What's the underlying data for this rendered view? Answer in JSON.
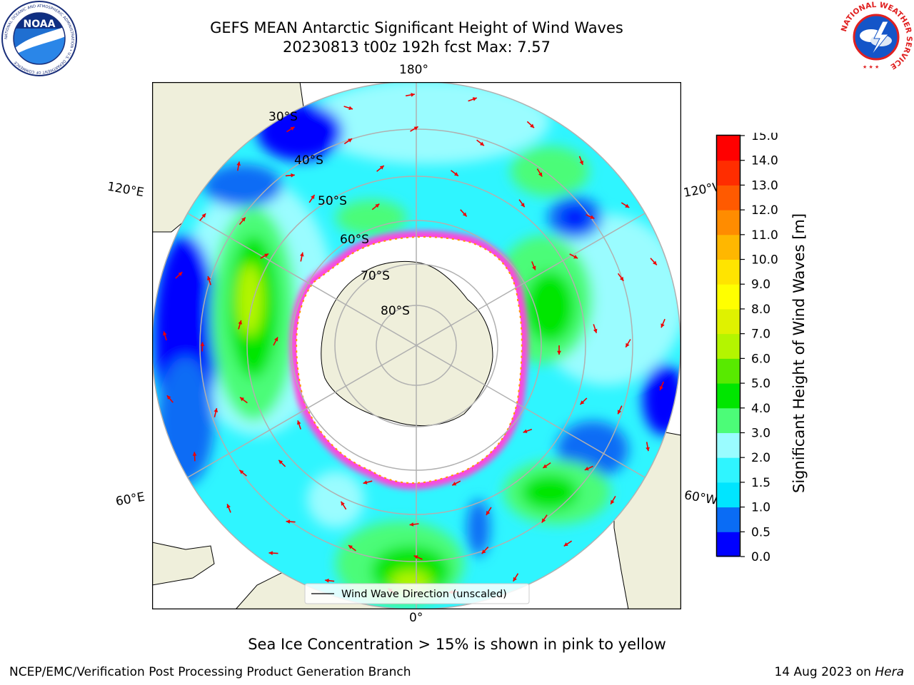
{
  "title": {
    "line1": "GEFS MEAN Antarctic Significant Height of Wind Waves",
    "line2": "20230813 t00z 192h fcst   Max: 7.57"
  },
  "map": {
    "longitude_labels": {
      "top": "180°",
      "bottom": "0°",
      "left_upper": "120°E",
      "left_lower": "60°E",
      "right_upper": "120°W",
      "right_lower": "60°W"
    },
    "latitude_labels": [
      "30°S",
      "40°S",
      "50°S",
      "60°S",
      "70°S",
      "80°S"
    ],
    "legend": "Wind Wave Direction (unscaled)"
  },
  "colorbar": {
    "label": "Significant Height of Wind Waves [m]",
    "ticks": [
      "0.0",
      "0.5",
      "1.0",
      "1.5",
      "2.0",
      "3.0",
      "4.0",
      "5.0",
      "6.0",
      "7.0",
      "8.0",
      "9.0",
      "10.0",
      "11.0",
      "12.0",
      "13.0",
      "14.0",
      "15.0"
    ],
    "colors": [
      "#0000ff",
      "#0a6cf5",
      "#00e5ff",
      "#2ff5ff",
      "#9afcff",
      "#4cfc78",
      "#00e600",
      "#58ea00",
      "#b4f500",
      "#dff200",
      "#ffff00",
      "#ffe400",
      "#ffb700",
      "#ff8c00",
      "#ff5a00",
      "#ff2d00",
      "#ff0000"
    ]
  },
  "colors": {
    "land": "#efefdb",
    "sea_ice": "#ff44dd",
    "arrow": "#ee0000",
    "grid": "#b0b0b0",
    "ocean_mid": "#2ff5ff"
  },
  "footnote": "Sea Ice Concentration > 15% is shown in pink to yellow",
  "credit": "NCEP/EMC/Verification Post Processing Product Generation Branch",
  "date": {
    "text": "14 Aug 2023 on ",
    "system": "Hera"
  },
  "logos": {
    "noaa": {
      "text": "NOAA",
      "ring": "NATIONAL OCEANIC AND ATMOSPHERIC ADMINISTRATION • U.S. DEPARTMENT OF COMMERCE"
    },
    "nws": {
      "ring": "NATIONAL WEATHER SERVICE"
    }
  }
}
